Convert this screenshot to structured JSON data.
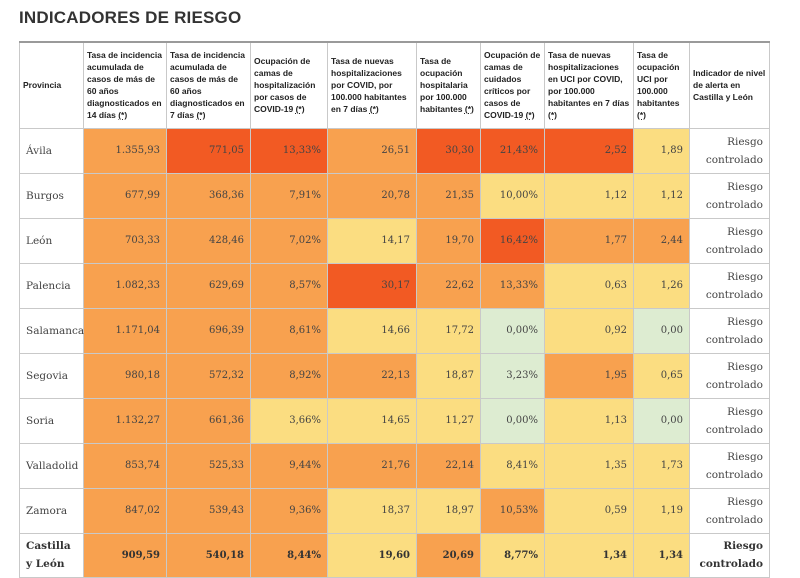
{
  "title": "INDICADORES DE RIESGO",
  "headers": [
    {
      "text": "Provincia",
      "asterisk": ""
    },
    {
      "text": "Tasa de incidencia acumulada de casos de más de 60 años diagnosticados en 14 días ",
      "asterisk": "(*)"
    },
    {
      "text": "Tasa de incidencia acumulada de casos de más de 60 años diagnosticados en 7 días ",
      "asterisk": "(*)"
    },
    {
      "text": "Ocupación de camas de hospitalización por casos de COVID-19 ",
      "asterisk": "(*)"
    },
    {
      "text": "Tasa de nuevas hospitalizaciones por COVID, por 100.000 habitantes en 7 días ",
      "asterisk": "(*)"
    },
    {
      "text": "Tasa de ocupación hospitalaria por 100.000 habitantes ",
      "asterisk": "(*)"
    },
    {
      "text": "Ocupación de camas de cuidados críticos por casos de COVID-19 ",
      "asterisk": "(*)"
    },
    {
      "text": "Tasa de nuevas hospitalizaciones en UCI por COVID, por 100.000 habitantes en 7 días ",
      "asterisk": "(*)"
    },
    {
      "text": "Tasa de ocupación UCI por 100.000 habitantes ",
      "asterisk": "(*)"
    },
    {
      "text": "Indicador de nivel de alerta en Castilla y León",
      "asterisk": ""
    }
  ],
  "alert_text": "Riesgo controlado",
  "colors": {
    "red": "#f25a23",
    "orange": "#f8a14f",
    "yellow": "#fbdd81",
    "green": "#ddecd1"
  },
  "rows": [
    {
      "provincia": "Ávila",
      "values": [
        "1.355,93",
        "771,05",
        "13,33%",
        "26,51",
        "30,30",
        "21,43%",
        "2,52",
        "1,89"
      ],
      "levels": [
        "org",
        "red",
        "red",
        "org",
        "red",
        "red",
        "red",
        "yel"
      ],
      "alert": "Riesgo controlado"
    },
    {
      "provincia": "Burgos",
      "values": [
        "677,99",
        "368,36",
        "7,91%",
        "20,78",
        "21,35",
        "10,00%",
        "1,12",
        "1,12"
      ],
      "levels": [
        "org",
        "org",
        "org",
        "org",
        "org",
        "yel",
        "yel",
        "yel"
      ],
      "alert": "Riesgo controlado"
    },
    {
      "provincia": "León",
      "values": [
        "703,33",
        "428,46",
        "7,02%",
        "14,17",
        "19,70",
        "16,42%",
        "1,77",
        "2,44"
      ],
      "levels": [
        "org",
        "org",
        "org",
        "yel",
        "org",
        "red",
        "org",
        "org"
      ],
      "alert": "Riesgo controlado"
    },
    {
      "provincia": "Palencia",
      "values": [
        "1.082,33",
        "629,69",
        "8,57%",
        "30,17",
        "22,62",
        "13,33%",
        "0,63",
        "1,26"
      ],
      "levels": [
        "org",
        "org",
        "org",
        "red",
        "org",
        "org",
        "yel",
        "yel"
      ],
      "alert": "Riesgo controlado"
    },
    {
      "provincia": "Salamanca",
      "values": [
        "1.171,04",
        "696,39",
        "8,61%",
        "14,66",
        "17,72",
        "0,00%",
        "0,92",
        "0,00"
      ],
      "levels": [
        "org",
        "org",
        "org",
        "yel",
        "yel",
        "grn",
        "yel",
        "grn"
      ],
      "alert": "Riesgo controlado"
    },
    {
      "provincia": "Segovia",
      "values": [
        "980,18",
        "572,32",
        "8,92%",
        "22,13",
        "18,87",
        "3,23%",
        "1,95",
        "0,65"
      ],
      "levels": [
        "org",
        "org",
        "org",
        "org",
        "yel",
        "grn",
        "org",
        "yel"
      ],
      "alert": "Riesgo controlado"
    },
    {
      "provincia": "Soria",
      "values": [
        "1.132,27",
        "661,36",
        "3,66%",
        "14,65",
        "11,27",
        "0,00%",
        "1,13",
        "0,00"
      ],
      "levels": [
        "org",
        "org",
        "yel",
        "yel",
        "yel",
        "grn",
        "yel",
        "grn"
      ],
      "alert": "Riesgo controlado"
    },
    {
      "provincia": "Valladolid",
      "values": [
        "853,74",
        "525,33",
        "9,44%",
        "21,76",
        "22,14",
        "8,41%",
        "1,35",
        "1,73"
      ],
      "levels": [
        "org",
        "org",
        "org",
        "org",
        "org",
        "yel",
        "yel",
        "yel"
      ],
      "alert": "Riesgo controlado"
    },
    {
      "provincia": "Zamora",
      "values": [
        "847,02",
        "539,43",
        "9,36%",
        "18,37",
        "18,97",
        "10,53%",
        "0,59",
        "1,19"
      ],
      "levels": [
        "org",
        "org",
        "org",
        "yel",
        "yel",
        "org",
        "yel",
        "yel"
      ],
      "alert": "Riesgo controlado"
    },
    {
      "provincia": "Castilla y León",
      "values": [
        "909,59",
        "540,18",
        "8,44%",
        "19,60",
        "20,69",
        "8,77%",
        "1,34",
        "1,34"
      ],
      "levels": [
        "org",
        "org",
        "org",
        "yel",
        "org",
        "yel",
        "yel",
        "yel"
      ],
      "alert": "Riesgo controlado",
      "total": true
    }
  ]
}
